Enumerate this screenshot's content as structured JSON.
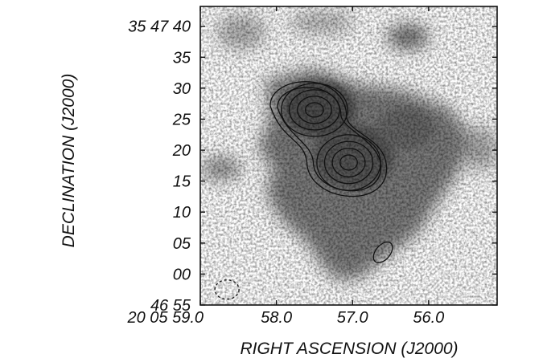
{
  "chart_data": {
    "type": "heatmap",
    "title": "",
    "xlabel": "RIGHT ASCENSION (J2000)",
    "ylabel": "DECLINATION (J2000)",
    "x_ticks": [
      {
        "value_s": 59.0,
        "label": "20 05 59.0"
      },
      {
        "value_s": 58.0,
        "label": "58.0"
      },
      {
        "value_s": 57.0,
        "label": "57.0"
      },
      {
        "value_s": 56.0,
        "label": "56.0"
      }
    ],
    "y_ticks": [
      {
        "value_arcsec": 100,
        "label": "35 47 40"
      },
      {
        "value_arcsec": 95,
        "label": "35"
      },
      {
        "value_arcsec": 90,
        "label": "30"
      },
      {
        "value_arcsec": 85,
        "label": "25"
      },
      {
        "value_arcsec": 80,
        "label": "20"
      },
      {
        "value_arcsec": 75,
        "label": "15"
      },
      {
        "value_arcsec": 70,
        "label": "10"
      },
      {
        "value_arcsec": 65,
        "label": "05"
      },
      {
        "value_arcsec": 60,
        "label": "00"
      },
      {
        "value_arcsec": 55,
        "label": "46 55"
      }
    ],
    "xlim_s": [
      59.0,
      55.1
    ],
    "ylim_arcsec": [
      55,
      103.2
    ],
    "contour_peaks": [
      {
        "ra_s": 57.5,
        "dec_arcsec": 86.5,
        "levels": 5
      },
      {
        "ra_s": 57.05,
        "dec_arcsec": 78.0,
        "levels": 5
      }
    ],
    "beams": [
      {
        "name": "contour-beam",
        "ra_s": 56.6,
        "dec_arcsec": 63.5,
        "style": "solid"
      },
      {
        "name": "image-beam",
        "ra_s": 58.65,
        "dec_arcsec": 57.5,
        "style": "dashed"
      }
    ],
    "colors": {
      "colormap": "grayscale",
      "contour": "#111111",
      "frame": "#111111"
    }
  }
}
